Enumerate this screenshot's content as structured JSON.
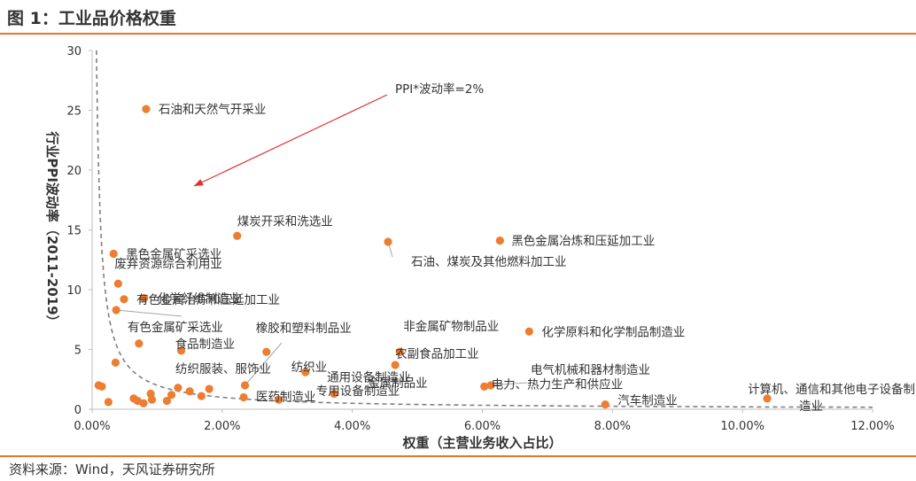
{
  "header": {
    "title": "图 1：工业品价格权重",
    "source": "资料来源：Wind，天风证券研究所"
  },
  "colors": {
    "accent": "#e87722",
    "dot": "#ed7d31",
    "curve": "#7f7f7f",
    "arrow": "#e03030"
  },
  "chart_data": {
    "type": "scatter",
    "title": "",
    "xlabel": "权重（主营业务收入占比）",
    "ylabel": "行业PPI波动率（2011-2019）",
    "xlim": [
      0,
      0.12
    ],
    "ylim": [
      0,
      30
    ],
    "x_ticks": [
      "0.00%",
      "2.00%",
      "4.00%",
      "6.00%",
      "8.00%",
      "10.00%",
      "12.00%"
    ],
    "y_ticks": [
      "0",
      "5",
      "10",
      "15",
      "20",
      "25",
      "30"
    ],
    "grid": false,
    "reference_curve": {
      "label": "PPI*波动率=2%",
      "product": 0.02,
      "style": "dashed"
    },
    "points": [
      {
        "x": 0.0083,
        "y": 25.1,
        "label": "石油和天然气开采业"
      },
      {
        "x": 0.0223,
        "y": 14.5,
        "label": "煤炭开采和洗选业"
      },
      {
        "x": 0.0455,
        "y": 14.0,
        "label": "石油、煤炭及其他燃料加工业"
      },
      {
        "x": 0.0627,
        "y": 14.1,
        "label": "黑色金属冶炼和压延加工业"
      },
      {
        "x": 0.0033,
        "y": 13.0,
        "label": "黑色金属矿采选业"
      },
      {
        "x": 0.004,
        "y": 10.5,
        "label": "废弃资源综合利用业"
      },
      {
        "x": 0.008,
        "y": 9.3,
        "label": "化学纤维制造业"
      },
      {
        "x": 0.0049,
        "y": 9.2,
        "label": "有色金属冶炼和压延加工业"
      },
      {
        "x": 0.0037,
        "y": 8.3,
        "label": ""
      },
      {
        "x": 0.0072,
        "y": 5.5,
        "label": "有色金属矿采选业"
      },
      {
        "x": 0.0137,
        "y": 4.9,
        "label": "食品制造业"
      },
      {
        "x": 0.0268,
        "y": 4.8,
        "label": "橡胶和塑料制品业"
      },
      {
        "x": 0.0672,
        "y": 6.5,
        "label": "化学原料和化学制品制造业"
      },
      {
        "x": 0.0473,
        "y": 4.8,
        "label": "非金属矿物制品业"
      },
      {
        "x": 0.0466,
        "y": 3.7,
        "label": "农副食品加工业"
      },
      {
        "x": 0.0328,
        "y": 3.1,
        "label": "纺织业"
      },
      {
        "x": 0.0036,
        "y": 3.9,
        "label": ""
      },
      {
        "x": 0.0235,
        "y": 2.0,
        "label": "纺织服装、服饰业"
      },
      {
        "x": 0.018,
        "y": 1.7,
        "label": "金属制品业"
      },
      {
        "x": 0.0372,
        "y": 1.3,
        "label": "通用设备制造业"
      },
      {
        "x": 0.0603,
        "y": 1.9,
        "label": "电力、热力生产和供应业"
      },
      {
        "x": 0.0613,
        "y": 2.0,
        "label": "电气机械和器材制造业"
      },
      {
        "x": 0.0789,
        "y": 0.4,
        "label": "汽车制造业"
      },
      {
        "x": 0.1038,
        "y": 0.9,
        "label": "计算机、通信和其他电子设备制造业"
      },
      {
        "x": 0.0233,
        "y": 1.0,
        "label": "医药制造业"
      },
      {
        "x": 0.0287,
        "y": 0.8,
        "label": "专用设备制造业"
      },
      {
        "x": 0.001,
        "y": 2.0,
        "label": ""
      },
      {
        "x": 0.0015,
        "y": 1.9,
        "label": ""
      },
      {
        "x": 0.0025,
        "y": 0.6,
        "label": ""
      },
      {
        "x": 0.0064,
        "y": 0.9,
        "label": ""
      },
      {
        "x": 0.007,
        "y": 0.7,
        "label": ""
      },
      {
        "x": 0.0079,
        "y": 0.5,
        "label": ""
      },
      {
        "x": 0.009,
        "y": 1.3,
        "label": ""
      },
      {
        "x": 0.0092,
        "y": 0.8,
        "label": ""
      },
      {
        "x": 0.0115,
        "y": 0.7,
        "label": ""
      },
      {
        "x": 0.0122,
        "y": 1.2,
        "label": ""
      },
      {
        "x": 0.0132,
        "y": 1.8,
        "label": ""
      },
      {
        "x": 0.015,
        "y": 1.5,
        "label": ""
      },
      {
        "x": 0.0168,
        "y": 1.1,
        "label": ""
      }
    ]
  }
}
